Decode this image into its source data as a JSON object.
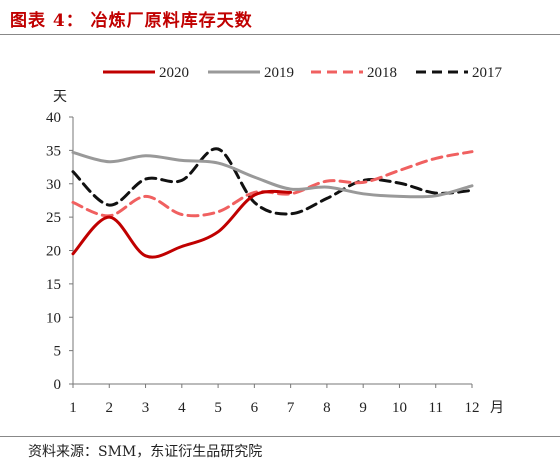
{
  "figure": {
    "title": "图表 4：  冶炼厂原料库存天数",
    "source": "资料来源：SMM，东证衍生品研究院"
  },
  "chart_data": {
    "type": "line",
    "title": "",
    "xlabel": "",
    "ylabel": "",
    "x_unit": "月",
    "y_unit": "天",
    "x": [
      1,
      2,
      3,
      4,
      5,
      6,
      7,
      8,
      9,
      10,
      11,
      12
    ],
    "xlim": [
      1,
      12
    ],
    "ylim": [
      0,
      40
    ],
    "y_ticks": [
      0,
      5,
      10,
      15,
      20,
      25,
      30,
      35,
      40
    ],
    "grid": false,
    "legend_position": "top",
    "series": [
      {
        "name": "2020",
        "color": "#c00000",
        "style": "solid",
        "values": [
          19.5,
          25.0,
          19.2,
          20.6,
          22.8,
          28.3,
          28.7,
          null,
          null,
          null,
          null,
          null
        ]
      },
      {
        "name": "2019",
        "color": "#999999",
        "style": "solid",
        "values": [
          34.7,
          33.3,
          34.2,
          33.5,
          33.1,
          31.0,
          29.2,
          29.5,
          28.5,
          28.1,
          28.2,
          29.7
        ]
      },
      {
        "name": "2018",
        "color": "#f06060",
        "style": "dashed",
        "values": [
          27.2,
          25.2,
          28.1,
          25.4,
          25.8,
          28.7,
          28.5,
          30.4,
          30.2,
          32.0,
          33.8,
          34.8
        ]
      },
      {
        "name": "2017",
        "color": "#111111",
        "style": "dashed",
        "values": [
          31.8,
          26.8,
          30.7,
          30.5,
          35.2,
          27.2,
          25.5,
          27.8,
          30.5,
          30.1,
          28.6,
          29.0
        ]
      }
    ]
  }
}
